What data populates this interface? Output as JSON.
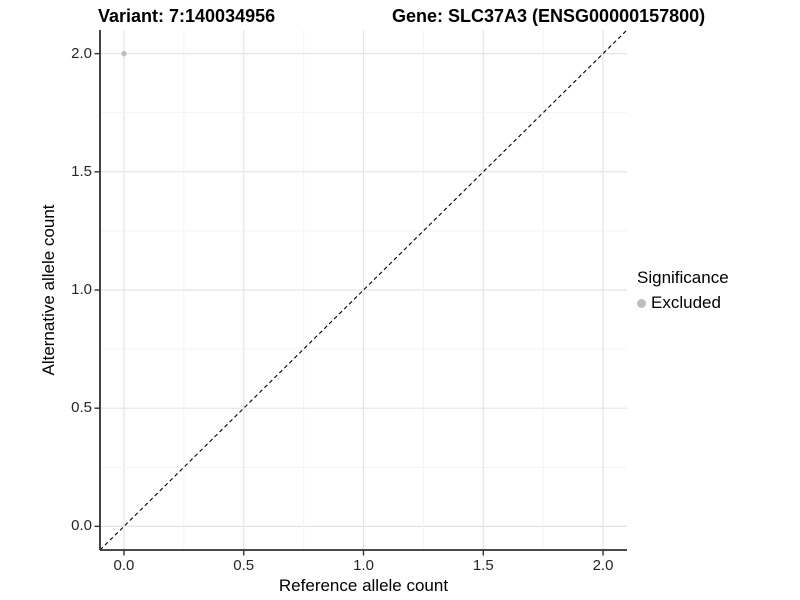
{
  "title": {
    "variant": "Variant: 7:140034956",
    "gene": "Gene: SLC37A3 (ENSG00000157800)"
  },
  "axes": {
    "x": {
      "label": "Reference allele count"
    },
    "y": {
      "label": "Alternative allele count"
    }
  },
  "legend": {
    "title": "Significance",
    "items": [
      {
        "label": "Excluded",
        "color": "#bdbdbd"
      }
    ]
  },
  "chart_data": {
    "type": "scatter",
    "title": "Variant: 7:140034956",
    "subtitle": "Gene: SLC37A3 (ENSG00000157800)",
    "xlabel": "Reference allele count",
    "ylabel": "Alternative allele count",
    "xlim": [
      -0.1,
      2.1
    ],
    "ylim": [
      -0.1,
      2.1
    ],
    "x_ticks": [
      0,
      0.5,
      1,
      1.5,
      2
    ],
    "y_ticks": [
      0,
      0.5,
      1,
      1.5,
      2
    ],
    "x_tick_labels": [
      "0.0",
      "0.5",
      "1.0",
      "1.5",
      "2.0"
    ],
    "y_tick_labels": [
      "0.0",
      "0.5",
      "1.0",
      "1.5",
      "2.0"
    ],
    "grid": {
      "on": true,
      "major_step": 0.5,
      "minor_step": 0.25,
      "major_color": "#e4e4e4",
      "minor_color": "#f2f2f2"
    },
    "reference_line": {
      "type": "identity y=x",
      "style": "dashed",
      "color": "#000000",
      "from": [
        -0.1,
        -0.1
      ],
      "to": [
        2.1,
        2.1
      ]
    },
    "series": [
      {
        "name": "Excluded",
        "color": "#bdbdbd",
        "points": [
          [
            0.0,
            2.0
          ]
        ]
      }
    ],
    "legend": {
      "title": "Significance",
      "position": "right",
      "entries": [
        "Excluded"
      ]
    }
  }
}
